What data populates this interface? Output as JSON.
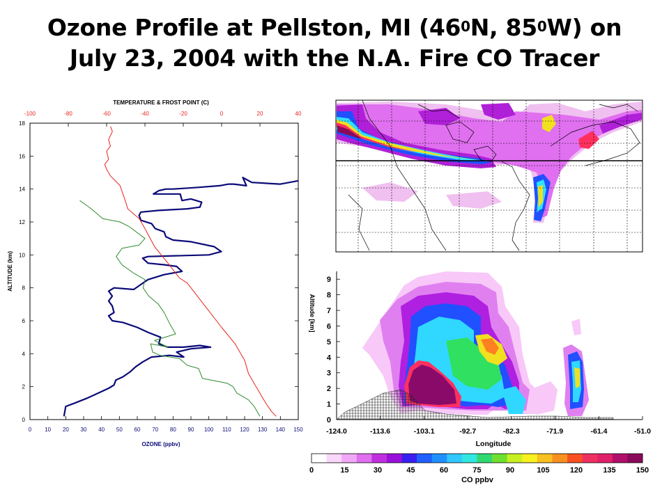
{
  "title": {
    "line1_a": "Ozone Profile at  Pellston, MI (46",
    "line1_sup1": "0",
    "line1_b": "N, 85",
    "line1_sup2": "0",
    "line1_c": "W) on",
    "line2": "July 23, 2004 with the N.A. Fire CO Tracer"
  },
  "colors": {
    "ozone": "#0a0a78",
    "temperature": "#e8231d",
    "frost_point": "#2e8b2e",
    "top_axis": "#e8231d",
    "bottom_axis": "#0a0a78"
  },
  "chart_data": [
    {
      "type": "line",
      "top_axis_label": "TEMPERATURE & FROST POINT (C)",
      "top_ticks": [
        "-100",
        "-80",
        "-60",
        "-40",
        "-20",
        "0",
        "20",
        "40"
      ],
      "top_xlim": [
        -100,
        40
      ],
      "ylabel": "ALTITUDE (km)",
      "ylim": [
        0,
        18
      ],
      "yticks": [
        "0",
        "2",
        "4",
        "6",
        "8",
        "10",
        "12",
        "14",
        "16",
        "18"
      ],
      "xlabel": "OZONE (ppbv)",
      "xlim": [
        0,
        150
      ],
      "xticks": [
        "0",
        "10",
        "20",
        "30",
        "40",
        "50",
        "60",
        "70",
        "80",
        "90",
        "100",
        "110",
        "120",
        "130",
        "140",
        "150"
      ],
      "series": [
        {
          "axis": "bottom",
          "color": "#0a0a78",
          "points": [
            [
              19,
              0.2
            ],
            [
              20,
              0.8
            ],
            [
              25,
              1.0
            ],
            [
              32,
              1.3
            ],
            [
              38,
              1.6
            ],
            [
              44,
              1.9
            ],
            [
              47,
              2.1
            ],
            [
              48,
              2.4
            ],
            [
              52,
              2.6
            ],
            [
              56,
              2.9
            ],
            [
              59,
              3.2
            ],
            [
              63,
              3.5
            ],
            [
              68,
              3.8
            ],
            [
              78,
              3.9
            ],
            [
              86,
              3.8
            ],
            [
              82,
              4.1
            ],
            [
              90,
              4.3
            ],
            [
              101,
              4.4
            ],
            [
              95,
              4.5
            ],
            [
              86,
              4.4
            ],
            [
              77,
              4.4
            ],
            [
              72,
              4.6
            ],
            [
              73,
              5.0
            ],
            [
              66,
              5.3
            ],
            [
              60,
              5.6
            ],
            [
              52,
              5.9
            ],
            [
              46,
              6.0
            ],
            [
              44,
              6.3
            ],
            [
              47,
              6.5
            ],
            [
              46,
              6.9
            ],
            [
              44,
              7.2
            ],
            [
              46,
              7.5
            ],
            [
              44,
              7.8
            ],
            [
              47,
              8.0
            ],
            [
              58,
              7.9
            ],
            [
              62,
              8.2
            ],
            [
              66,
              8.5
            ],
            [
              75,
              8.8
            ],
            [
              85,
              9.0
            ],
            [
              82,
              9.3
            ],
            [
              75,
              9.4
            ],
            [
              66,
              9.5
            ],
            [
              63,
              9.8
            ],
            [
              66,
              9.9
            ],
            [
              100,
              10.0
            ],
            [
              107,
              10.2
            ],
            [
              103,
              10.5
            ],
            [
              90,
              10.8
            ],
            [
              80,
              10.9
            ],
            [
              76,
              11.1
            ],
            [
              75,
              11.4
            ],
            [
              70,
              11.6
            ],
            [
              68,
              11.9
            ],
            [
              62,
              12.1
            ],
            [
              61,
              12.4
            ],
            [
              62,
              12.6
            ],
            [
              72,
              12.7
            ],
            [
              88,
              12.8
            ],
            [
              95,
              12.9
            ],
            [
              96,
              13.2
            ],
            [
              90,
              13.4
            ],
            [
              85,
              13.3
            ],
            [
              84,
              13.7
            ],
            [
              76,
              13.7
            ],
            [
              69,
              13.7
            ],
            [
              72,
              13.9
            ],
            [
              76,
              14.0
            ],
            [
              80,
              14.0
            ],
            [
              94,
              14.1
            ],
            [
              106,
              14.2
            ],
            [
              111,
              14.3
            ],
            [
              114,
              14.3
            ],
            [
              121,
              14.2
            ],
            [
              119,
              14.7
            ],
            [
              124,
              14.4
            ],
            [
              140,
              14.3
            ],
            [
              150,
              14.5
            ]
          ]
        },
        {
          "axis": "top",
          "color": "#e8231d",
          "points": [
            [
              28.5,
              0.2
            ],
            [
              26,
              0.5
            ],
            [
              23,
              1.0
            ],
            [
              18,
              2.0
            ],
            [
              14,
              2.8
            ],
            [
              12,
              3.6
            ],
            [
              7,
              4.6
            ],
            [
              0,
              5.6
            ],
            [
              -8,
              6.8
            ],
            [
              -18,
              8.3
            ],
            [
              -22,
              8.6
            ],
            [
              -28,
              9.5
            ],
            [
              -35,
              10.5
            ],
            [
              -40,
              11.6
            ],
            [
              -43,
              12.2
            ],
            [
              -49,
              12.8
            ],
            [
              -50,
              13.2
            ],
            [
              -53,
              14.2
            ],
            [
              -58,
              14.8
            ],
            [
              -60,
              15.2
            ],
            [
              -61,
              15.5
            ],
            [
              -59,
              15.8
            ],
            [
              -60,
              16.3
            ],
            [
              -58,
              16.6
            ],
            [
              -59,
              17.0
            ],
            [
              -57,
              17.5
            ],
            [
              -58,
              17.8
            ]
          ]
        },
        {
          "axis": "top",
          "color": "#2e8b2e",
          "points": [
            [
              20,
              0.2
            ],
            [
              17,
              0.8
            ],
            [
              14,
              1.2
            ],
            [
              8,
              1.6
            ],
            [
              6,
              2.0
            ],
            [
              3,
              2.2
            ],
            [
              -10,
              2.5
            ],
            [
              -12,
              3.1
            ],
            [
              -18,
              3.3
            ],
            [
              -22,
              3.7
            ],
            [
              -32,
              3.9
            ],
            [
              -36,
              4.1
            ],
            [
              -37,
              4.6
            ],
            [
              -28,
              4.4
            ],
            [
              -35,
              4.8
            ],
            [
              -24,
              5.2
            ],
            [
              -27,
              5.8
            ],
            [
              -30,
              6.5
            ],
            [
              -33,
              7.0
            ],
            [
              -38,
              7.5
            ],
            [
              -41,
              8.0
            ],
            [
              -40,
              8.5
            ],
            [
              -46,
              8.9
            ],
            [
              -52,
              9.4
            ],
            [
              -55,
              9.9
            ],
            [
              -52,
              10.4
            ],
            [
              -43,
              10.6
            ],
            [
              -40,
              11.0
            ],
            [
              -48,
              11.7
            ],
            [
              -53,
              12.0
            ],
            [
              -62,
              12.2
            ],
            [
              -68,
              12.8
            ],
            [
              -74,
              13.3
            ]
          ]
        }
      ]
    },
    {
      "type": "heatmap",
      "xlabel": "Longitude",
      "xticks": [
        "-124.0",
        "-113.6",
        "-103.1",
        "-92.7",
        "-82.3",
        "-71.9",
        "-61.4",
        "-51.0"
      ],
      "xlim": [
        -124.0,
        -51.0
      ],
      "ylabel": "Altitude [km]",
      "yticks": [
        "0",
        "1",
        "2",
        "3",
        "4",
        "5",
        "6",
        "7",
        "8",
        "9"
      ],
      "ylim": [
        0,
        9.5
      ],
      "colorbar_label": "CO ppbv",
      "colorbar_ticks": [
        "0",
        "15",
        "30",
        "45",
        "60",
        "75",
        "90",
        "105",
        "120",
        "135",
        "150"
      ],
      "colorbar_range": [
        0,
        150
      ]
    },
    {
      "type": "heatmap",
      "grid": true
    }
  ]
}
